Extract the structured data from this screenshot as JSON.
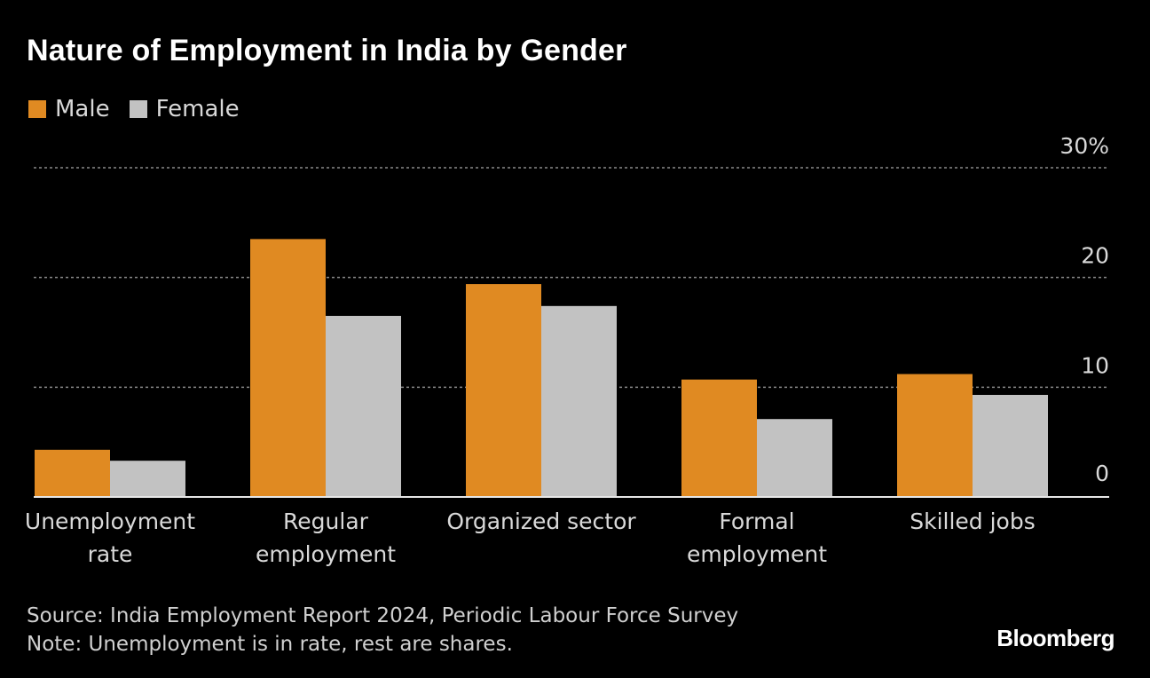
{
  "title": "Nature of Employment in India by Gender",
  "legend": [
    {
      "label": "Male",
      "color": "#e08a22"
    },
    {
      "label": "Female",
      "color": "#c2c2c2"
    }
  ],
  "chart_data": {
    "type": "bar",
    "title": "Nature of Employment in India by Gender",
    "categories": [
      [
        "Unemployment",
        "rate"
      ],
      [
        "Regular",
        "employment"
      ],
      [
        "Organized sector"
      ],
      [
        "Formal",
        "employment"
      ],
      [
        "Skilled jobs"
      ]
    ],
    "series": [
      {
        "name": "Male",
        "color": "#e08a22",
        "values": [
          4.3,
          23.5,
          19.4,
          10.7,
          11.2
        ]
      },
      {
        "name": "Female",
        "color": "#c2c2c2",
        "values": [
          3.3,
          16.5,
          17.4,
          7.1,
          9.3
        ]
      }
    ],
    "y_ticks": [
      0,
      10,
      20,
      30
    ],
    "y_tick_labels": [
      "0",
      "10",
      "20",
      "30%"
    ],
    "ylim": [
      0,
      30
    ],
    "xlabel": "",
    "ylabel": "",
    "grid": true
  },
  "footer": {
    "source": "Source: India Employment Report 2024, Periodic Labour Force Survey",
    "note": "Note: Unemployment is in rate, rest are shares."
  },
  "brand": "Bloomberg"
}
